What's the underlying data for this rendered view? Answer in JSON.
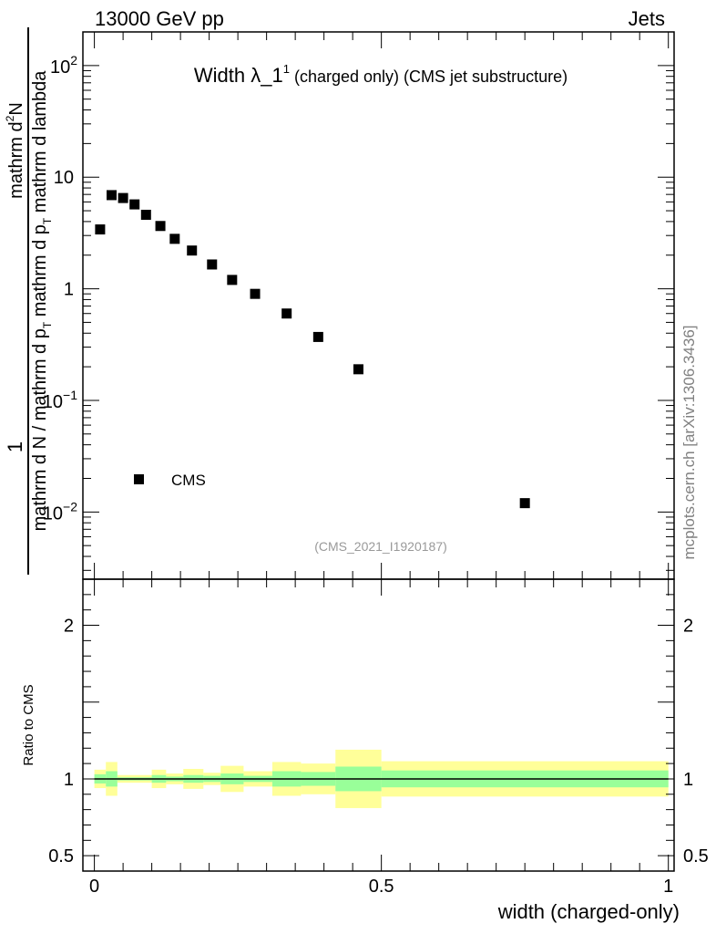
{
  "header": {
    "energy_label": "13000 GeV pp",
    "process_label": "Jets"
  },
  "side_label": "mcplots.cern.ch [arXiv:1306.3436]",
  "chart_data": [
    {
      "type": "scatter",
      "panel": "main",
      "title": {
        "prefix": "Width ",
        "symbol": "λ_1",
        "superscript": "1",
        "suffix": " (charged only) (CMS jet substructure)"
      },
      "ylabel": {
        "numerator": "1",
        "num_part1": "mathrm d",
        "num_sup": "2",
        "num_part2": "N",
        "den_part1": "mathrm d N / mathrm d p",
        "den_sub1": "T",
        "den_part2": " mathrm d p",
        "den_sub2": "T",
        "den_part3": " mathrm d lambda"
      },
      "yscale": "log",
      "ylim": [
        0.0025,
        200
      ],
      "xlim": [
        -0.02,
        1.01
      ],
      "y_ticks": [
        {
          "value": 100,
          "base": "10",
          "exp": "2"
        },
        {
          "value": 10,
          "label": "10"
        },
        {
          "value": 1,
          "label": "1"
        },
        {
          "value": 0.1,
          "base": "10",
          "exp": "−1"
        },
        {
          "value": 0.01,
          "base": "10",
          "exp": "−2"
        }
      ],
      "legend": {
        "position": "bottom-left",
        "entries": [
          "CMS"
        ]
      },
      "annotation": "(CMS_2021_I1920187)",
      "series": [
        {
          "name": "CMS",
          "x": [
            0.01,
            0.03,
            0.05,
            0.07,
            0.09,
            0.115,
            0.14,
            0.17,
            0.205,
            0.24,
            0.28,
            0.335,
            0.39,
            0.46,
            0.75
          ],
          "y": [
            3.4,
            6.9,
            6.5,
            5.7,
            4.6,
            3.65,
            2.8,
            2.2,
            1.65,
            1.2,
            0.9,
            0.6,
            0.37,
            0.19,
            0.012
          ]
        }
      ]
    },
    {
      "type": "area",
      "panel": "ratio",
      "ylabel": "Ratio to CMS",
      "xlabel": "width (charged-only)",
      "ylim": [
        0.4,
        2.3
      ],
      "xlim": [
        -0.02,
        1.01
      ],
      "y_ticks": [
        {
          "value": 2,
          "label": "2"
        },
        {
          "value": 1,
          "label": "1"
        },
        {
          "value": 0.5,
          "label": "0.5"
        }
      ],
      "x_ticks": [
        {
          "value": 0,
          "label": "0"
        },
        {
          "value": 0.5,
          "label": "0.5"
        },
        {
          "value": 1,
          "label": "1"
        }
      ],
      "reference_line": 1,
      "bins": [
        {
          "x0": 0.0,
          "x1": 0.02,
          "inner": 0.03,
          "outer": 0.06
        },
        {
          "x0": 0.02,
          "x1": 0.04,
          "inner": 0.05,
          "outer": 0.11
        },
        {
          "x0": 0.04,
          "x1": 0.1,
          "inner": 0.01,
          "outer": 0.025
        },
        {
          "x0": 0.1,
          "x1": 0.125,
          "inner": 0.025,
          "outer": 0.06
        },
        {
          "x0": 0.125,
          "x1": 0.155,
          "inner": 0.015,
          "outer": 0.035
        },
        {
          "x0": 0.155,
          "x1": 0.19,
          "inner": 0.025,
          "outer": 0.065
        },
        {
          "x0": 0.19,
          "x1": 0.22,
          "inner": 0.02,
          "outer": 0.04
        },
        {
          "x0": 0.22,
          "x1": 0.26,
          "inner": 0.035,
          "outer": 0.085
        },
        {
          "x0": 0.26,
          "x1": 0.31,
          "inner": 0.02,
          "outer": 0.05
        },
        {
          "x0": 0.31,
          "x1": 0.36,
          "inner": 0.05,
          "outer": 0.11
        },
        {
          "x0": 0.36,
          "x1": 0.42,
          "inner": 0.045,
          "outer": 0.1
        },
        {
          "x0": 0.42,
          "x1": 0.5,
          "inner": 0.08,
          "outer": 0.19
        },
        {
          "x0": 0.5,
          "x1": 1.0,
          "inner": 0.055,
          "outer": 0.115
        }
      ]
    }
  ],
  "colors": {
    "outer_band": "#ffff99",
    "inner_band": "#99ff99",
    "marker": "#000000",
    "annotation": "#999999",
    "side_label": "#808080"
  }
}
